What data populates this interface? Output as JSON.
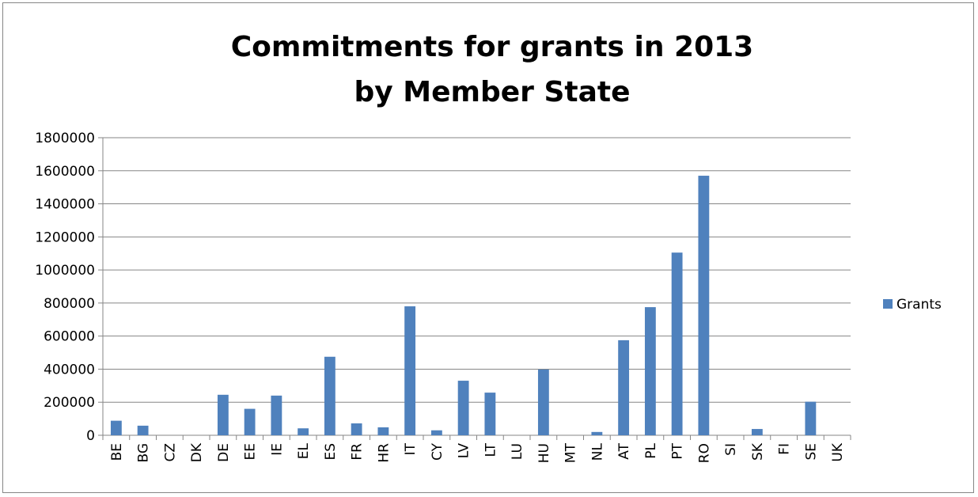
{
  "chart_data": {
    "type": "bar",
    "title_lines": [
      "Commitments for grants in 2013",
      "by Member State"
    ],
    "xlabel": "",
    "ylabel": "",
    "ylim": [
      0,
      1800000
    ],
    "yticks": [
      "0",
      "200000",
      "400000",
      "600000",
      "800000",
      "1000000",
      "1200000",
      "1400000",
      "1600000",
      "1800000"
    ],
    "grid": true,
    "legend_position": "right",
    "categories": [
      "BE",
      "BG",
      "CZ",
      "DK",
      "DE",
      "EE",
      "IE",
      "EL",
      "ES",
      "FR",
      "HR",
      "IT",
      "CY",
      "LV",
      "LT",
      "LU",
      "HU",
      "MT",
      "NL",
      "AT",
      "PL",
      "PT",
      "RO",
      "SI",
      "SK",
      "FI",
      "SE",
      "UK"
    ],
    "series": [
      {
        "name": "Grants",
        "color": "#4f81bd",
        "values": [
          88000,
          58000,
          0,
          0,
          245000,
          160000,
          240000,
          42000,
          475000,
          72000,
          48000,
          780000,
          30000,
          330000,
          258000,
          0,
          398000,
          0,
          20000,
          575000,
          775000,
          1105000,
          1570000,
          0,
          38000,
          0,
          203000,
          0
        ]
      }
    ]
  }
}
